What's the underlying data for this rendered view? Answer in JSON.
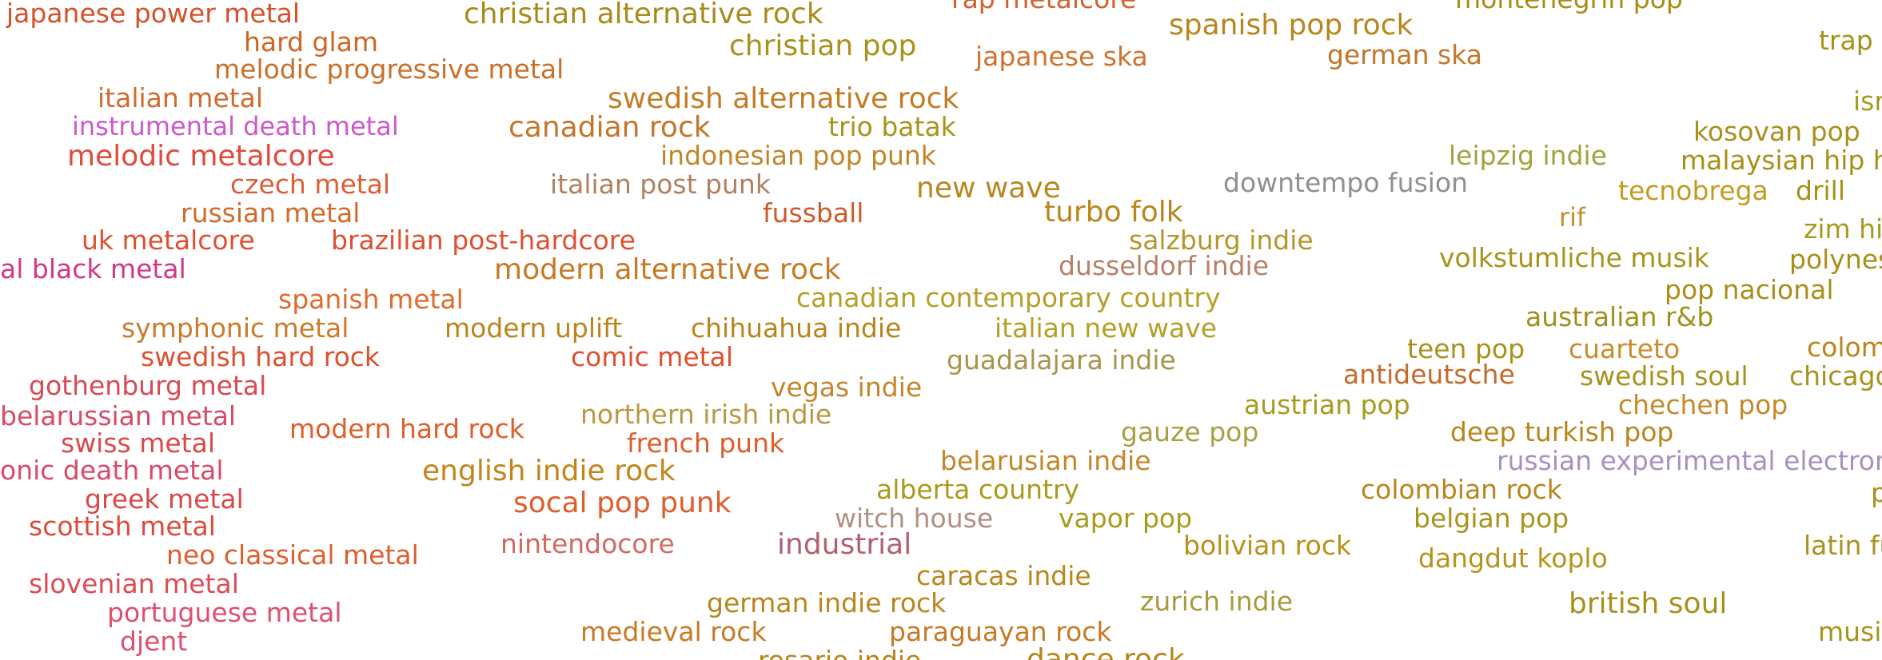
{
  "genres": [
    {
      "label": "japanese power metal",
      "color": "#d4512a"
    },
    {
      "label": "christian alternative rock",
      "color": "#a68c1c"
    },
    {
      "label": "rap metalcore",
      "color": "#d0622a"
    },
    {
      "label": "spanish pop rock",
      "color": "#b8861c"
    },
    {
      "label": "montenegrin pop",
      "color": "#a88c18"
    },
    {
      "label": "trap",
      "color": "#a8901a"
    },
    {
      "label": "hard glam",
      "color": "#d06624"
    },
    {
      "label": "christian pop",
      "color": "#a8921c"
    },
    {
      "label": "japanese ska",
      "color": "#d2722a"
    },
    {
      "label": "german ska",
      "color": "#c2762a"
    },
    {
      "label": "melodic progressive metal",
      "color": "#c8702a"
    },
    {
      "label": "italian metal",
      "color": "#d26a2c"
    },
    {
      "label": "swedish alternative rock",
      "color": "#c47c24"
    },
    {
      "label": "isr",
      "color": "#a89a1c"
    },
    {
      "label": "kosovan pop",
      "color": "#a8901a"
    },
    {
      "label": "instrumental death metal",
      "color": "#cc58cc"
    },
    {
      "label": "canadian rock",
      "color": "#c2762a"
    },
    {
      "label": "trio batak",
      "color": "#a8941c"
    },
    {
      "label": "malaysian hip hop",
      "color": "#a89018"
    },
    {
      "label": "melodic metalcore",
      "color": "#e04a3a"
    },
    {
      "label": "indonesian pop punk",
      "color": "#c0862a"
    },
    {
      "label": "leipzig indie",
      "color": "#a2a240"
    },
    {
      "label": "czech metal",
      "color": "#de5e34"
    },
    {
      "label": "italian post punk",
      "color": "#b08060"
    },
    {
      "label": "new wave",
      "color": "#b8861c"
    },
    {
      "label": "downtempo fusion",
      "color": "#909090"
    },
    {
      "label": "tecnobrega",
      "color": "#c49a20"
    },
    {
      "label": "drill",
      "color": "#a8901a"
    },
    {
      "label": "russian metal",
      "color": "#d26a2c"
    },
    {
      "label": "fussball",
      "color": "#cc5a2a"
    },
    {
      "label": "turbo folk",
      "color": "#ba861c"
    },
    {
      "label": "rif",
      "color": "#c4902a"
    },
    {
      "label": "zim hip",
      "color": "#a89a20"
    },
    {
      "label": "uk metalcore",
      "color": "#de5030"
    },
    {
      "label": "brazilian post-hardcore",
      "color": "#de5030"
    },
    {
      "label": "salzburg indie",
      "color": "#b4962a"
    },
    {
      "label": "volkstumliche musik",
      "color": "#a8941c"
    },
    {
      "label": "polynes",
      "color": "#a8901a"
    },
    {
      "label": "al black metal",
      "color": "#d23888"
    },
    {
      "label": "modern alternative rock",
      "color": "#c67a24"
    },
    {
      "label": "dusseldorf indie",
      "color": "#b8806a"
    },
    {
      "label": "spanish metal",
      "color": "#de6a2c"
    },
    {
      "label": "canadian contemporary country",
      "color": "#b4a028"
    },
    {
      "label": "pop nacional",
      "color": "#aa8e1a"
    },
    {
      "label": "australian r&b",
      "color": "#a0901e"
    },
    {
      "label": "symphonic metal",
      "color": "#cc7a2a"
    },
    {
      "label": "modern uplift",
      "color": "#b8861c"
    },
    {
      "label": "chihuahua indie",
      "color": "#b8861c"
    },
    {
      "label": "italian new wave",
      "color": "#b4a028"
    },
    {
      "label": "teen pop",
      "color": "#a8921c"
    },
    {
      "label": "cuarteto",
      "color": "#cc8a2a"
    },
    {
      "label": "colom",
      "color": "#b8861c"
    },
    {
      "label": "swedish hard rock",
      "color": "#de5030"
    },
    {
      "label": "comic metal",
      "color": "#de5030"
    },
    {
      "label": "guadalajara indie",
      "color": "#a8944c"
    },
    {
      "label": "antideutsche",
      "color": "#c46a2c"
    },
    {
      "label": "swedish soul",
      "color": "#a8921c"
    },
    {
      "label": "chicago",
      "color": "#a8921c"
    },
    {
      "label": "gothenburg metal",
      "color": "#d84a54"
    },
    {
      "label": "vegas indie",
      "color": "#c4862a"
    },
    {
      "label": "chechen pop",
      "color": "#c48a2a"
    },
    {
      "label": "belarussian metal",
      "color": "#d84a6a"
    },
    {
      "label": "northern irish indie",
      "color": "#b89a42"
    },
    {
      "label": "austrian pop",
      "color": "#a89a1c"
    },
    {
      "label": "swiss metal",
      "color": "#d84a4a"
    },
    {
      "label": "modern hard rock",
      "color": "#de5e2c"
    },
    {
      "label": "french punk",
      "color": "#de5e2c"
    },
    {
      "label": "gauze pop",
      "color": "#a8a040"
    },
    {
      "label": "deep turkish pop",
      "color": "#b8861c"
    },
    {
      "label": "onic death metal",
      "color": "#d84a6a"
    },
    {
      "label": "english indie rock",
      "color": "#c0861c"
    },
    {
      "label": "belarusian indie",
      "color": "#c4862a"
    },
    {
      "label": "russian experimental electronic",
      "color": "#a890c0"
    },
    {
      "label": "p",
      "color": "#a8941c"
    },
    {
      "label": "greek metal",
      "color": "#d84a4a"
    },
    {
      "label": "socal pop punk",
      "color": "#de5e2c"
    },
    {
      "label": "alberta country",
      "color": "#aa9a1c"
    },
    {
      "label": "colombian rock",
      "color": "#b8861c"
    },
    {
      "label": "scottish metal",
      "color": "#de4a3a"
    },
    {
      "label": "witch house",
      "color": "#b09080"
    },
    {
      "label": "vapor pop",
      "color": "#aa9a1c"
    },
    {
      "label": "belgian pop",
      "color": "#a8941c"
    },
    {
      "label": "neo classical metal",
      "color": "#de5e2c"
    },
    {
      "label": "nintendocore",
      "color": "#d06a62"
    },
    {
      "label": "industrial",
      "color": "#b06070"
    },
    {
      "label": "bolivian rock",
      "color": "#b8901a"
    },
    {
      "label": "latin fu",
      "color": "#a8921c"
    },
    {
      "label": "dangdut koplo",
      "color": "#b4941c"
    },
    {
      "label": "caracas indie",
      "color": "#b8861c"
    },
    {
      "label": "slovenian metal",
      "color": "#de4a54"
    },
    {
      "label": "german indie rock",
      "color": "#b8861c"
    },
    {
      "label": "zurich indie",
      "color": "#a89a40"
    },
    {
      "label": "british soul",
      "color": "#a8901a"
    },
    {
      "label": "portuguese metal",
      "color": "#de5070"
    },
    {
      "label": "medieval rock",
      "color": "#c67a24"
    },
    {
      "label": "paraguayan rock",
      "color": "#c67a24"
    },
    {
      "label": "musik",
      "color": "#a8941c"
    },
    {
      "label": "djent",
      "color": "#de5070"
    },
    {
      "label": "rosario indie",
      "color": "#b8861c"
    },
    {
      "label": "dance rock",
      "color": "#b8861c"
    }
  ]
}
